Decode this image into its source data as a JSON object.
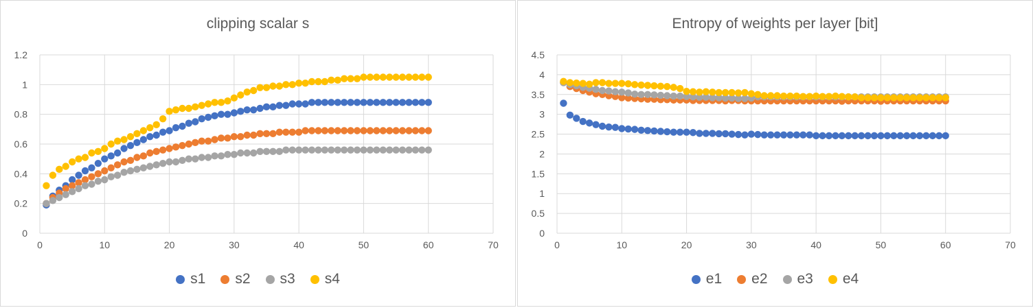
{
  "chart_data": [
    {
      "type": "scatter",
      "title": "clipping scalar s",
      "xlim": [
        0,
        70
      ],
      "ylim": [
        0,
        1.2
      ],
      "x_ticks": [
        "0",
        "10",
        "20",
        "30",
        "40",
        "50",
        "60",
        "70"
      ],
      "y_ticks": [
        "0",
        "0.2",
        "0.4",
        "0.6",
        "0.8",
        "1",
        "1.2"
      ],
      "grid": true,
      "legend_position": "bottom",
      "x": [
        1,
        2,
        3,
        4,
        5,
        6,
        7,
        8,
        9,
        10,
        11,
        12,
        13,
        14,
        15,
        16,
        17,
        18,
        19,
        20,
        21,
        22,
        23,
        24,
        25,
        26,
        27,
        28,
        29,
        30,
        31,
        32,
        33,
        34,
        35,
        36,
        37,
        38,
        39,
        40,
        41,
        42,
        43,
        44,
        45,
        46,
        47,
        48,
        49,
        50,
        51,
        52,
        53,
        54,
        55,
        56,
        57,
        58,
        59,
        60
      ],
      "series": [
        {
          "name": "s1",
          "color": "#4472C4",
          "values": [
            0.19,
            0.25,
            0.29,
            0.32,
            0.36,
            0.39,
            0.42,
            0.44,
            0.47,
            0.5,
            0.52,
            0.54,
            0.57,
            0.59,
            0.61,
            0.63,
            0.65,
            0.66,
            0.68,
            0.69,
            0.71,
            0.72,
            0.74,
            0.75,
            0.77,
            0.78,
            0.79,
            0.8,
            0.8,
            0.81,
            0.82,
            0.83,
            0.83,
            0.84,
            0.85,
            0.85,
            0.86,
            0.86,
            0.87,
            0.87,
            0.87,
            0.88,
            0.88,
            0.88,
            0.88,
            0.88,
            0.88,
            0.88,
            0.88,
            0.88,
            0.88,
            0.88,
            0.88,
            0.88,
            0.88,
            0.88,
            0.88,
            0.88,
            0.88,
            0.88
          ]
        },
        {
          "name": "s2",
          "color": "#ED7D31",
          "values": [
            0.2,
            0.24,
            0.27,
            0.3,
            0.32,
            0.34,
            0.36,
            0.38,
            0.4,
            0.42,
            0.44,
            0.46,
            0.48,
            0.49,
            0.51,
            0.52,
            0.54,
            0.55,
            0.56,
            0.57,
            0.58,
            0.59,
            0.6,
            0.61,
            0.62,
            0.62,
            0.63,
            0.64,
            0.64,
            0.65,
            0.65,
            0.66,
            0.66,
            0.67,
            0.67,
            0.67,
            0.68,
            0.68,
            0.68,
            0.68,
            0.69,
            0.69,
            0.69,
            0.69,
            0.69,
            0.69,
            0.69,
            0.69,
            0.69,
            0.69,
            0.69,
            0.69,
            0.69,
            0.69,
            0.69,
            0.69,
            0.69,
            0.69,
            0.69,
            0.69
          ]
        },
        {
          "name": "s3",
          "color": "#A5A5A5",
          "values": [
            0.2,
            0.22,
            0.24,
            0.26,
            0.28,
            0.3,
            0.32,
            0.33,
            0.35,
            0.36,
            0.38,
            0.39,
            0.41,
            0.42,
            0.43,
            0.44,
            0.45,
            0.46,
            0.47,
            0.48,
            0.48,
            0.49,
            0.5,
            0.5,
            0.51,
            0.51,
            0.52,
            0.52,
            0.53,
            0.53,
            0.54,
            0.54,
            0.54,
            0.55,
            0.55,
            0.55,
            0.55,
            0.56,
            0.56,
            0.56,
            0.56,
            0.56,
            0.56,
            0.56,
            0.56,
            0.56,
            0.56,
            0.56,
            0.56,
            0.56,
            0.56,
            0.56,
            0.56,
            0.56,
            0.56,
            0.56,
            0.56,
            0.56,
            0.56,
            0.56
          ]
        },
        {
          "name": "s4",
          "color": "#FFC000",
          "values": [
            0.32,
            0.39,
            0.43,
            0.45,
            0.48,
            0.5,
            0.51,
            0.54,
            0.55,
            0.57,
            0.6,
            0.62,
            0.63,
            0.65,
            0.67,
            0.69,
            0.71,
            0.73,
            0.77,
            0.82,
            0.83,
            0.84,
            0.84,
            0.85,
            0.86,
            0.87,
            0.88,
            0.88,
            0.89,
            0.91,
            0.93,
            0.95,
            0.96,
            0.98,
            0.98,
            0.99,
            0.99,
            1.0,
            1.0,
            1.01,
            1.01,
            1.02,
            1.02,
            1.02,
            1.03,
            1.03,
            1.04,
            1.04,
            1.04,
            1.05,
            1.05,
            1.05,
            1.05,
            1.05,
            1.05,
            1.05,
            1.05,
            1.05,
            1.05,
            1.05
          ]
        }
      ]
    },
    {
      "type": "scatter",
      "title": "Entropy of weights per layer [bit]",
      "xlim": [
        0,
        70
      ],
      "ylim": [
        0,
        4.5
      ],
      "x_ticks": [
        "0",
        "10",
        "20",
        "30",
        "40",
        "50",
        "60",
        "70"
      ],
      "y_ticks": [
        "0",
        "0.5",
        "1",
        "1.5",
        "2",
        "2.5",
        "3",
        "3.5",
        "4",
        "4.5"
      ],
      "grid": true,
      "legend_position": "bottom",
      "x": [
        1,
        2,
        3,
        4,
        5,
        6,
        7,
        8,
        9,
        10,
        11,
        12,
        13,
        14,
        15,
        16,
        17,
        18,
        19,
        20,
        21,
        22,
        23,
        24,
        25,
        26,
        27,
        28,
        29,
        30,
        31,
        32,
        33,
        34,
        35,
        36,
        37,
        38,
        39,
        40,
        41,
        42,
        43,
        44,
        45,
        46,
        47,
        48,
        49,
        50,
        51,
        52,
        53,
        54,
        55,
        56,
        57,
        58,
        59,
        60
      ],
      "series": [
        {
          "name": "e1",
          "color": "#4472C4",
          "values": [
            3.28,
            2.98,
            2.9,
            2.82,
            2.78,
            2.74,
            2.7,
            2.68,
            2.67,
            2.64,
            2.63,
            2.62,
            2.6,
            2.59,
            2.58,
            2.57,
            2.56,
            2.55,
            2.55,
            2.55,
            2.54,
            2.52,
            2.52,
            2.52,
            2.51,
            2.51,
            2.5,
            2.49,
            2.48,
            2.5,
            2.49,
            2.48,
            2.48,
            2.48,
            2.48,
            2.48,
            2.48,
            2.48,
            2.48,
            2.46,
            2.46,
            2.46,
            2.46,
            2.46,
            2.46,
            2.46,
            2.46,
            2.46,
            2.46,
            2.46,
            2.46,
            2.46,
            2.46,
            2.46,
            2.46,
            2.46,
            2.46,
            2.46,
            2.46,
            2.46
          ]
        },
        {
          "name": "e2",
          "color": "#ED7D31",
          "values": [
            3.8,
            3.7,
            3.65,
            3.6,
            3.56,
            3.52,
            3.5,
            3.47,
            3.45,
            3.42,
            3.41,
            3.4,
            3.39,
            3.38,
            3.38,
            3.37,
            3.37,
            3.36,
            3.36,
            3.36,
            3.35,
            3.35,
            3.35,
            3.35,
            3.35,
            3.34,
            3.35,
            3.35,
            3.34,
            3.34,
            3.34,
            3.34,
            3.34,
            3.34,
            3.34,
            3.34,
            3.34,
            3.34,
            3.34,
            3.34,
            3.34,
            3.34,
            3.34,
            3.33,
            3.34,
            3.34,
            3.34,
            3.34,
            3.34,
            3.33,
            3.34,
            3.34,
            3.34,
            3.34,
            3.34,
            3.34,
            3.34,
            3.34,
            3.34,
            3.34
          ]
        },
        {
          "name": "e3",
          "color": "#A5A5A5",
          "values": [
            3.8,
            3.75,
            3.72,
            3.68,
            3.66,
            3.63,
            3.6,
            3.59,
            3.57,
            3.56,
            3.54,
            3.51,
            3.5,
            3.5,
            3.49,
            3.48,
            3.47,
            3.46,
            3.46,
            3.45,
            3.44,
            3.43,
            3.43,
            3.42,
            3.42,
            3.41,
            3.41,
            3.4,
            3.4,
            3.41,
            3.44,
            3.44,
            3.44,
            3.44,
            3.44,
            3.44,
            3.44,
            3.44,
            3.44,
            3.44,
            3.44,
            3.44,
            3.44,
            3.44,
            3.44,
            3.44,
            3.44,
            3.44,
            3.44,
            3.44,
            3.44,
            3.44,
            3.44,
            3.44,
            3.44,
            3.44,
            3.44,
            3.44,
            3.44,
            3.44
          ]
        },
        {
          "name": "e4",
          "color": "#FFC000",
          "values": [
            3.83,
            3.8,
            3.79,
            3.78,
            3.76,
            3.8,
            3.8,
            3.78,
            3.78,
            3.78,
            3.77,
            3.75,
            3.74,
            3.73,
            3.72,
            3.71,
            3.7,
            3.68,
            3.65,
            3.58,
            3.57,
            3.56,
            3.57,
            3.56,
            3.55,
            3.55,
            3.55,
            3.54,
            3.55,
            3.52,
            3.5,
            3.47,
            3.47,
            3.47,
            3.46,
            3.46,
            3.46,
            3.45,
            3.45,
            3.46,
            3.45,
            3.45,
            3.46,
            3.45,
            3.44,
            3.44,
            3.42,
            3.42,
            3.42,
            3.42,
            3.42,
            3.42,
            3.42,
            3.42,
            3.42,
            3.42,
            3.42,
            3.42,
            3.42,
            3.42
          ]
        }
      ]
    }
  ]
}
